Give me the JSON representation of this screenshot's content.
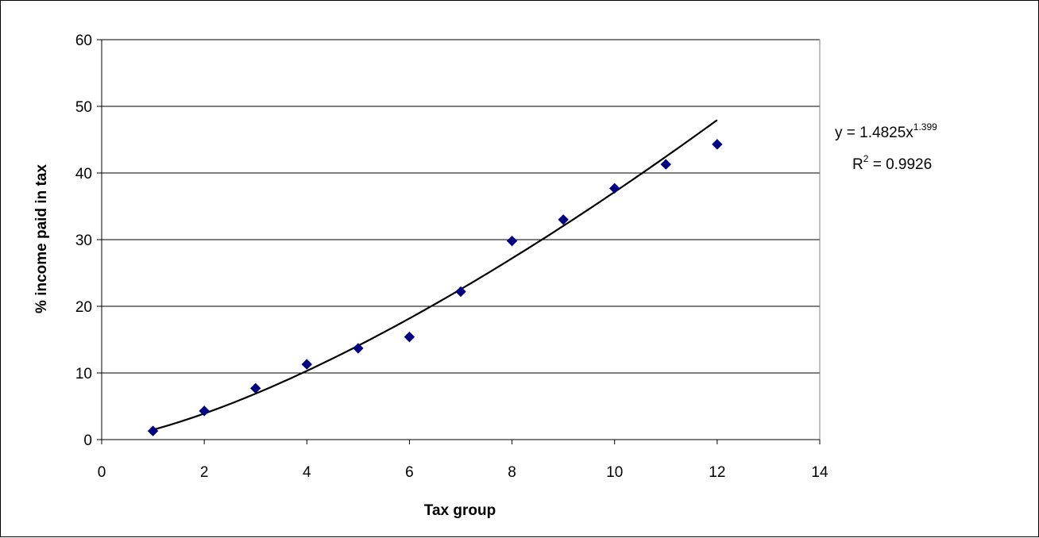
{
  "chart_data": {
    "type": "scatter",
    "xlabel": "Tax group",
    "ylabel": "% income paid in tax",
    "xlim": [
      0,
      14
    ],
    "ylim": [
      0,
      60
    ],
    "x_ticks": [
      0,
      2,
      4,
      6,
      8,
      10,
      12,
      14
    ],
    "y_ticks": [
      0,
      10,
      20,
      30,
      40,
      50,
      60
    ],
    "grid": "horizontal",
    "legend": "none",
    "series": [
      {
        "marker": "diamond",
        "color": "#000080",
        "x": [
          1,
          2,
          3,
          4,
          5,
          6,
          7,
          8,
          9,
          10,
          11,
          12
        ],
        "y": [
          1.3,
          4.3,
          7.7,
          11.3,
          13.7,
          15.4,
          22.2,
          29.8,
          33.0,
          37.7,
          41.3,
          44.3
        ]
      }
    ],
    "trendline": {
      "type": "power",
      "coefficient": 1.4825,
      "exponent": 1.399,
      "x_range": [
        1,
        12
      ],
      "color": "#000000",
      "equation": {
        "line1_prefix": "y = 1.4825x",
        "line1_sup": "1.399",
        "line2_prefix": "R",
        "line2_sup": "2",
        "line2_suffix": " = 0.9926"
      }
    }
  }
}
